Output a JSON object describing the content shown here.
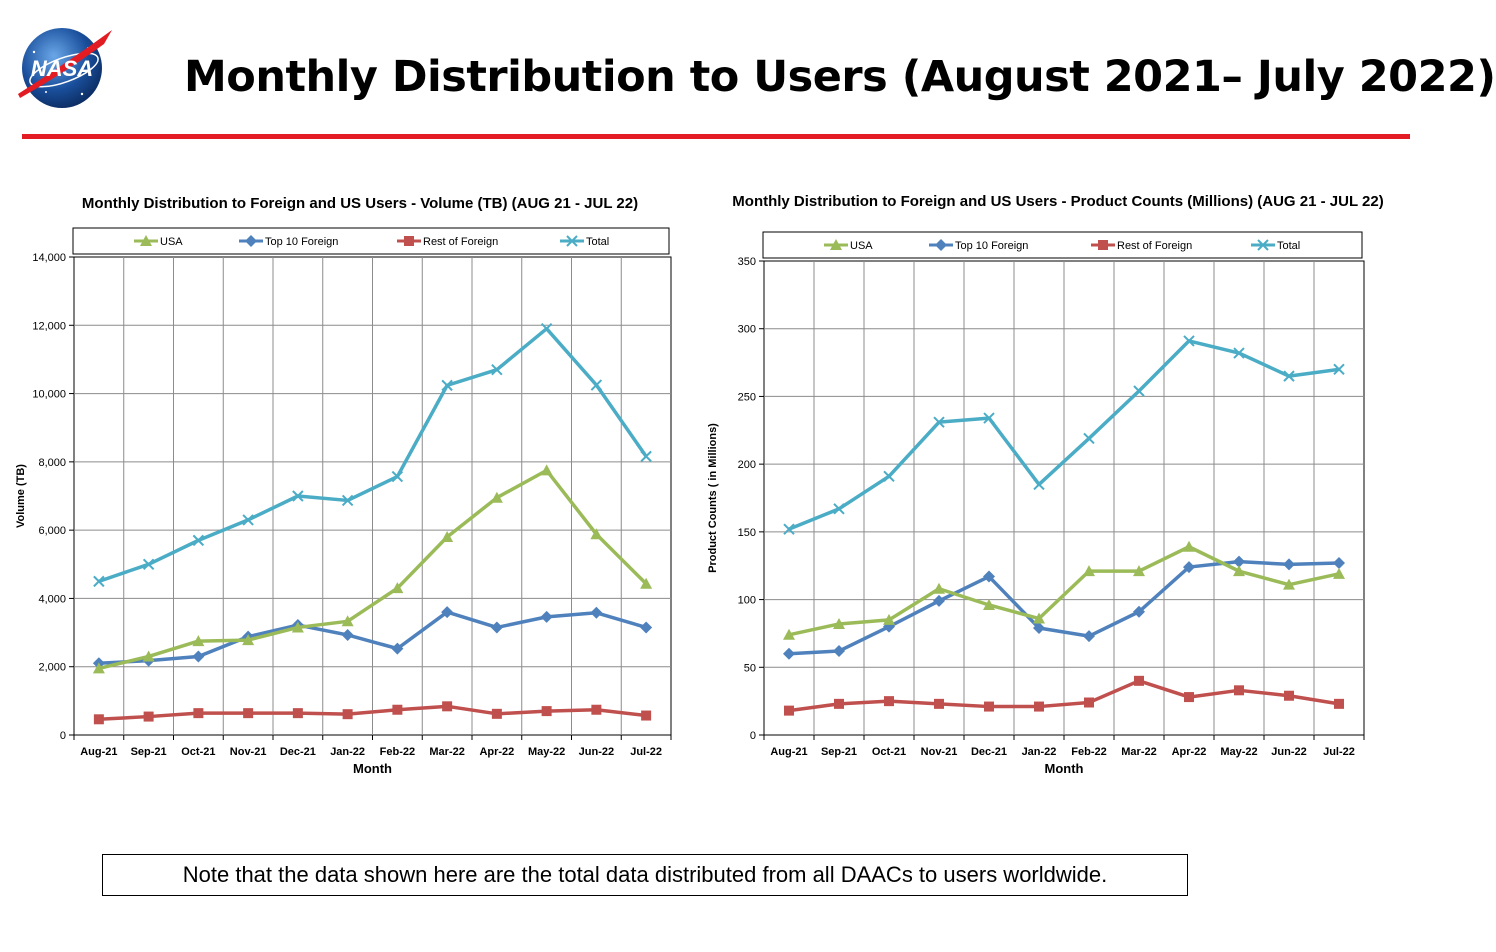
{
  "page": {
    "title": "Monthly Distribution to Users (August 2021– July 2022)",
    "logo_text": "NASA",
    "note": "Note that the data shown here are the total data distributed from all DAACs to users worldwide.",
    "accent_color": "#e31b23"
  },
  "chart_data": [
    {
      "type": "line",
      "title": "Monthly Distribution to Foreign and US Users - Volume  (TB) (AUG 21 - JUL 22)",
      "xlabel": "Month",
      "ylabel": "Volume (TB)",
      "ylim": [
        0,
        14000
      ],
      "yticks": [
        0,
        2000,
        4000,
        6000,
        8000,
        10000,
        12000,
        14000
      ],
      "ytick_labels": [
        "0",
        "2,000",
        "4,000",
        "6,000",
        "8,000",
        "10,000",
        "12,000",
        "14,000"
      ],
      "grid": true,
      "legend_position": "top",
      "categories": [
        "Aug-21",
        "Sep-21",
        "Oct-21",
        "Nov-21",
        "Dec-21",
        "Jan-22",
        "Feb-22",
        "Mar-22",
        "Apr-22",
        "May-22",
        "Jun-22",
        "Jul-22"
      ],
      "series": [
        {
          "name": "USA",
          "color": "#9bbb59",
          "marker": "triangle",
          "values": [
            1950,
            2300,
            2750,
            2780,
            3150,
            3330,
            4300,
            5800,
            6950,
            7750,
            5880,
            4430
          ]
        },
        {
          "name": "Top 10 Foreign",
          "color": "#4f81bd",
          "marker": "diamond",
          "values": [
            2100,
            2180,
            2300,
            2880,
            3220,
            2930,
            2530,
            3600,
            3150,
            3460,
            3580,
            3150
          ]
        },
        {
          "name": "Rest of Foreign",
          "color": "#c0504d",
          "marker": "square",
          "values": [
            460,
            540,
            640,
            640,
            640,
            610,
            740,
            840,
            620,
            700,
            740,
            570
          ]
        },
        {
          "name": "Total",
          "color": "#4bacc6",
          "marker": "x",
          "values": [
            4500,
            5000,
            5700,
            6300,
            7000,
            6870,
            7570,
            10240,
            10700,
            11900,
            10250,
            8160
          ]
        }
      ]
    },
    {
      "type": "line",
      "title": "Monthly Distribution to Foreign and US Users - Product Counts (Millions) (AUG 21 - JUL 22)",
      "xlabel": "Month",
      "ylabel": "Product Counts ( in Millions)",
      "ylim": [
        0,
        350
      ],
      "yticks": [
        0,
        50,
        100,
        150,
        200,
        250,
        300,
        350
      ],
      "ytick_labels": [
        "0",
        "50",
        "100",
        "150",
        "200",
        "250",
        "300",
        "350"
      ],
      "grid": true,
      "legend_position": "top",
      "categories": [
        "Aug-21",
        "Sep-21",
        "Oct-21",
        "Nov-21",
        "Dec-21",
        "Jan-22",
        "Feb-22",
        "Mar-22",
        "Apr-22",
        "May-22",
        "Jun-22",
        "Jul-22"
      ],
      "series": [
        {
          "name": "USA",
          "color": "#9bbb59",
          "marker": "triangle",
          "values": [
            74,
            82,
            85,
            108,
            96,
            86,
            121,
            121,
            139,
            121,
            111,
            119
          ]
        },
        {
          "name": "Top 10 Foreign",
          "color": "#4f81bd",
          "marker": "diamond",
          "values": [
            60,
            62,
            80,
            99,
            117,
            79,
            73,
            91,
            124,
            128,
            126,
            127
          ]
        },
        {
          "name": "Rest of Foreign",
          "color": "#c0504d",
          "marker": "square",
          "values": [
            18,
            23,
            25,
            23,
            21,
            21,
            24,
            40,
            28,
            33,
            29,
            23
          ]
        },
        {
          "name": "Total",
          "color": "#4bacc6",
          "marker": "x",
          "values": [
            152,
            167,
            191,
            231,
            234,
            185,
            219,
            254,
            291,
            282,
            265,
            270
          ]
        }
      ]
    }
  ]
}
